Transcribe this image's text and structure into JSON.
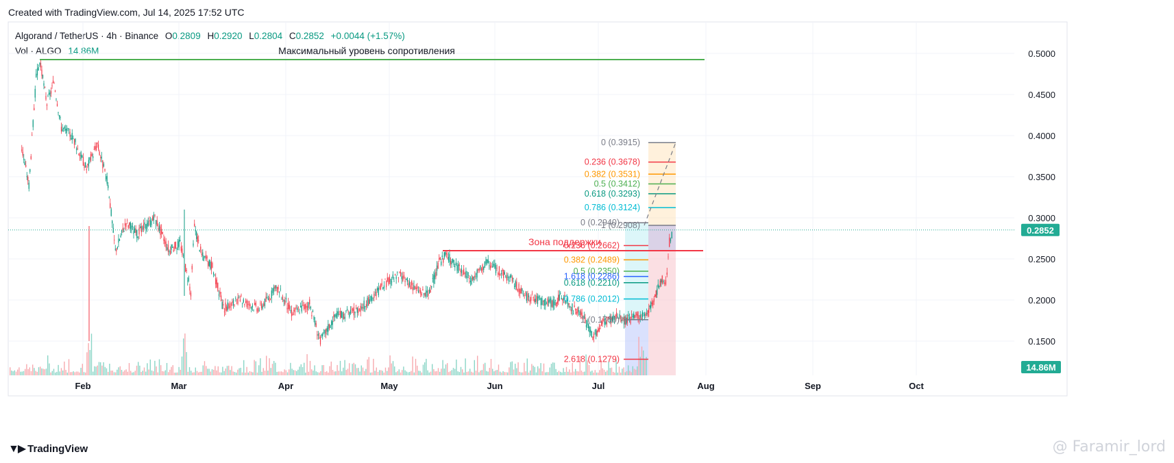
{
  "header": {
    "created_text": "Created with TradingView.com, Jul 14, 2025 17:52 UTC"
  },
  "legend": {
    "symbol": "Algorand / TetherUS · 4h · Binance",
    "o_label": "O",
    "o_value": "0.2809",
    "h_label": "H",
    "h_value": "0.2920",
    "l_label": "L",
    "l_value": "0.2804",
    "c_label": "C",
    "c_value": "0.2852",
    "change": "+0.0044 (+1.57%)",
    "vol_label": "Vol · ALGO",
    "vol_value": "14.86M"
  },
  "annotations": {
    "resistance_text": "Максимальный уровень сопротивления",
    "support_text": "Зона поддержки"
  },
  "price_tag": "0.2852",
  "volume_tag": "14.86M",
  "footer": {
    "logo_text": "TradingView",
    "watermark": "@ Faramir_lord"
  },
  "colors": {
    "up": "#089981",
    "down": "#f23645",
    "resistance": "#4caf50",
    "support": "#f23645",
    "tag": "#22ab94",
    "grid": "#f0f3fa"
  },
  "chart_data": {
    "type": "candlestick",
    "symbol": "ALGOUSDT",
    "timeframe": "4h",
    "x_ticks": [
      "Feb",
      "Mar",
      "Apr",
      "May",
      "Jun",
      "Jul",
      "Aug",
      "Sep",
      "Oct"
    ],
    "y_ticks": [
      "0.1500",
      "0.2000",
      "0.2500",
      "0.3000",
      "0.3500",
      "0.4000",
      "0.4500",
      "0.5000"
    ],
    "ylim": [
      0.125,
      0.525
    ],
    "last_price": 0.2852,
    "price_path": [
      {
        "x": "2025-01-14",
        "y": 0.385
      },
      {
        "x": "2025-01-16",
        "y": 0.34
      },
      {
        "x": "2025-01-18",
        "y": 0.47
      },
      {
        "x": "2025-01-19",
        "y": 0.49
      },
      {
        "x": "2025-01-21",
        "y": 0.44
      },
      {
        "x": "2025-01-23",
        "y": 0.465
      },
      {
        "x": "2025-01-25",
        "y": 0.41
      },
      {
        "x": "2025-01-28",
        "y": 0.4
      },
      {
        "x": "2025-02-01",
        "y": 0.36
      },
      {
        "x": "2025-02-04",
        "y": 0.39
      },
      {
        "x": "2025-02-07",
        "y": 0.34
      },
      {
        "x": "2025-02-09",
        "y": 0.26
      },
      {
        "x": "2025-02-12",
        "y": 0.295
      },
      {
        "x": "2025-02-15",
        "y": 0.28
      },
      {
        "x": "2025-02-20",
        "y": 0.3
      },
      {
        "x": "2025-02-24",
        "y": 0.26
      },
      {
        "x": "2025-02-27",
        "y": 0.27
      },
      {
        "x": "2025-03-02",
        "y": 0.21
      },
      {
        "x": "2025-03-03",
        "y": 0.29
      },
      {
        "x": "2025-03-05",
        "y": 0.255
      },
      {
        "x": "2025-03-08",
        "y": 0.24
      },
      {
        "x": "2025-03-11",
        "y": 0.19
      },
      {
        "x": "2025-03-16",
        "y": 0.2
      },
      {
        "x": "2025-03-21",
        "y": 0.19
      },
      {
        "x": "2025-03-26",
        "y": 0.215
      },
      {
        "x": "2025-03-30",
        "y": 0.185
      },
      {
        "x": "2025-04-04",
        "y": 0.195
      },
      {
        "x": "2025-04-07",
        "y": 0.15
      },
      {
        "x": "2025-04-11",
        "y": 0.18
      },
      {
        "x": "2025-04-16",
        "y": 0.185
      },
      {
        "x": "2025-04-21",
        "y": 0.2
      },
      {
        "x": "2025-04-25",
        "y": 0.22
      },
      {
        "x": "2025-04-29",
        "y": 0.23
      },
      {
        "x": "2025-05-03",
        "y": 0.215
      },
      {
        "x": "2025-05-07",
        "y": 0.205
      },
      {
        "x": "2025-05-10",
        "y": 0.245
      },
      {
        "x": "2025-05-12",
        "y": 0.255
      },
      {
        "x": "2025-05-15",
        "y": 0.24
      },
      {
        "x": "2025-05-19",
        "y": 0.225
      },
      {
        "x": "2025-05-23",
        "y": 0.245
      },
      {
        "x": "2025-05-27",
        "y": 0.235
      },
      {
        "x": "2025-05-30",
        "y": 0.225
      },
      {
        "x": "2025-06-03",
        "y": 0.205
      },
      {
        "x": "2025-06-07",
        "y": 0.2
      },
      {
        "x": "2025-06-11",
        "y": 0.195
      },
      {
        "x": "2025-06-13",
        "y": 0.205
      },
      {
        "x": "2025-06-16",
        "y": 0.19
      },
      {
        "x": "2025-06-19",
        "y": 0.18
      },
      {
        "x": "2025-06-22",
        "y": 0.155
      },
      {
        "x": "2025-06-25",
        "y": 0.175
      },
      {
        "x": "2025-06-28",
        "y": 0.18
      },
      {
        "x": "2025-07-01",
        "y": 0.175
      },
      {
        "x": "2025-07-04",
        "y": 0.18
      },
      {
        "x": "2025-07-07",
        "y": 0.185
      },
      {
        "x": "2025-07-09",
        "y": 0.205
      },
      {
        "x": "2025-07-11",
        "y": 0.225
      },
      {
        "x": "2025-07-12",
        "y": 0.22
      },
      {
        "x": "2025-07-13",
        "y": 0.27
      },
      {
        "x": "2025-07-14",
        "y": 0.2852
      }
    ],
    "resistance": {
      "label": "Максимальный уровень сопротивления",
      "price": 0.4925,
      "from": "2025-01-19",
      "to": "2025-08-01"
    },
    "support": {
      "label": "Зона поддержки",
      "price": 0.26,
      "from": "2025-05-11",
      "to": "2025-08-01"
    },
    "fib_upper": {
      "levels": [
        {
          "label": "0 (0.3915)",
          "price": 0.3915,
          "color": "#787b86"
        },
        {
          "label": "0.236 (0.3678)",
          "price": 0.3678,
          "color": "#f23645"
        },
        {
          "label": "0.382 (0.3531)",
          "price": 0.3531,
          "color": "#ff9800"
        },
        {
          "label": "0.5 (0.3412)",
          "price": 0.3412,
          "color": "#4caf50"
        },
        {
          "label": "0.618 (0.3293)",
          "price": 0.3293,
          "color": "#089981"
        },
        {
          "label": "0.786 (0.3124)",
          "price": 0.3124,
          "color": "#00bcd4"
        },
        {
          "label": "1 (0.2908)",
          "price": 0.2908,
          "color": "#787b86"
        }
      ]
    },
    "fib_lower": {
      "levels": [
        {
          "label": "0 (0.2940)",
          "price": 0.294,
          "color": "#787b86"
        },
        {
          "label": "0.236 (0.2662)",
          "price": 0.2662,
          "color": "#f23645"
        },
        {
          "label": "0.382 (0.2489)",
          "price": 0.2489,
          "color": "#ff9800"
        },
        {
          "label": "0.5 (0.2350)",
          "price": 0.235,
          "color": "#4caf50"
        },
        {
          "label": "0.618 (0.2210)",
          "price": 0.221,
          "color": "#089981"
        },
        {
          "label": "0.786 (0.2012)",
          "price": 0.2012,
          "color": "#00bcd4"
        },
        {
          "label": "1 (0.1760)",
          "price": 0.176,
          "color": "#787b86"
        },
        {
          "label": "1.618 (0.2286)",
          "price": 0.2286,
          "color": "#2962ff"
        },
        {
          "label": "2.618 (0.1279)",
          "price": 0.1279,
          "color": "#f23645"
        }
      ]
    }
  }
}
